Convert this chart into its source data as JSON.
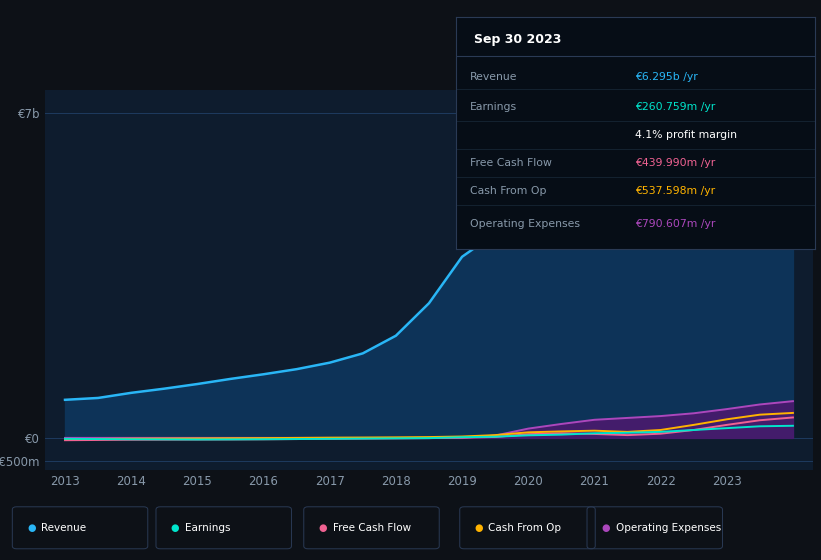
{
  "bg_color": "#0d1117",
  "plot_bg_color": "#0e1c2e",
  "years": [
    2013,
    2013.5,
    2014,
    2014.5,
    2015,
    2015.5,
    2016,
    2016.5,
    2017,
    2017.5,
    2018,
    2018.5,
    2019,
    2019.5,
    2020,
    2020.5,
    2021,
    2021.5,
    2022,
    2022.5,
    2023,
    2023.5,
    2024
  ],
  "revenue": [
    820,
    860,
    970,
    1060,
    1160,
    1270,
    1370,
    1480,
    1620,
    1820,
    2200,
    2900,
    3900,
    4400,
    4950,
    5100,
    5250,
    4700,
    4550,
    5100,
    5700,
    6100,
    6295
  ],
  "earnings": [
    -20,
    -25,
    -30,
    -32,
    -35,
    -33,
    -30,
    -25,
    -20,
    -15,
    -10,
    -5,
    15,
    25,
    55,
    70,
    100,
    110,
    130,
    170,
    210,
    250,
    261
  ],
  "free_cash_flow": [
    -50,
    -45,
    -40,
    -38,
    -35,
    -33,
    -30,
    -25,
    -20,
    -15,
    -10,
    -5,
    5,
    20,
    80,
    100,
    85,
    60,
    90,
    170,
    280,
    380,
    440
  ],
  "cash_from_op": [
    -25,
    -22,
    -18,
    -15,
    -12,
    -8,
    -5,
    0,
    5,
    8,
    12,
    18,
    30,
    60,
    120,
    140,
    155,
    130,
    170,
    280,
    400,
    500,
    538
  ],
  "operating_expenses": [
    0,
    0,
    0,
    0,
    0,
    0,
    0,
    0,
    0,
    0,
    0,
    0,
    0,
    50,
    200,
    300,
    390,
    430,
    470,
    530,
    620,
    720,
    791
  ],
  "revenue_color": "#29b6f6",
  "revenue_fill": "#0d3358",
  "earnings_color": "#00e5cc",
  "free_cash_flow_color": "#f06292",
  "cash_from_op_color": "#ffb300",
  "operating_expenses_color": "#ab47bc",
  "operating_expenses_fill": "#4a1a6e",
  "grid_color": "#1e3a5f",
  "axis_label_color": "#8899aa",
  "ytick_labels": [
    "€7b",
    "€0",
    "-€500m"
  ],
  "ytick_values": [
    7000,
    0,
    -500
  ],
  "xtick_years": [
    2013,
    2014,
    2015,
    2016,
    2017,
    2018,
    2019,
    2020,
    2021,
    2022,
    2023
  ],
  "ylim": [
    -700,
    7500
  ],
  "xlim": [
    2012.7,
    2024.3
  ],
  "info_box_title": "Sep 30 2023",
  "info_rows": [
    {
      "label": "Revenue",
      "value": "€6.295b /yr",
      "vcolor": "#29b6f6",
      "lcolor": "#8899aa"
    },
    {
      "label": "Earnings",
      "value": "€260.759m /yr",
      "vcolor": "#00e5cc",
      "lcolor": "#8899aa"
    },
    {
      "label": "",
      "value": "4.1% profit margin",
      "vcolor": "#ffffff",
      "lcolor": "#8899aa"
    },
    {
      "label": "Free Cash Flow",
      "value": "€439.990m /yr",
      "vcolor": "#f06292",
      "lcolor": "#8899aa"
    },
    {
      "label": "Cash From Op",
      "value": "€537.598m /yr",
      "vcolor": "#ffb300",
      "lcolor": "#8899aa"
    },
    {
      "label": "Operating Expenses",
      "value": "€790.607m /yr",
      "vcolor": "#ab47bc",
      "lcolor": "#8899aa"
    }
  ],
  "legend_items": [
    {
      "label": "Revenue",
      "color": "#29b6f6"
    },
    {
      "label": "Earnings",
      "color": "#00e5cc"
    },
    {
      "label": "Free Cash Flow",
      "color": "#f06292"
    },
    {
      "label": "Cash From Op",
      "color": "#ffb300"
    },
    {
      "label": "Operating Expenses",
      "color": "#ab47bc"
    }
  ]
}
